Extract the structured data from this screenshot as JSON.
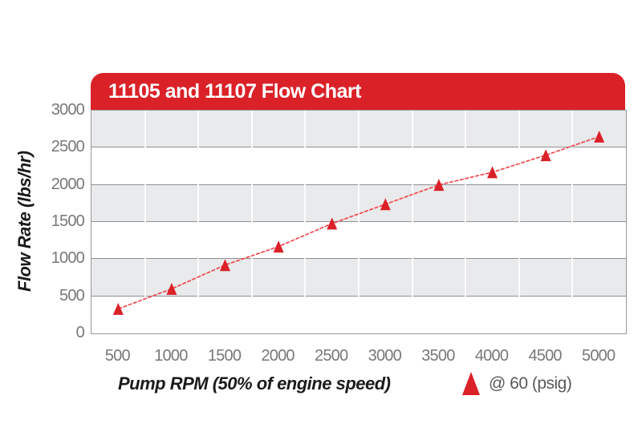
{
  "header": {
    "title": "11105 and 11107 Flow Chart"
  },
  "chart_data": {
    "type": "line",
    "title": "11105 and 11107 Flow Chart",
    "xlabel": "Pump RPM (50% of engine speed)",
    "ylabel": "Flow Rate (lbs/hr)",
    "x": [
      500,
      1000,
      1500,
      2000,
      2500,
      3000,
      3500,
      4000,
      4500,
      5000
    ],
    "series": [
      {
        "name": "@ 60 (psig)",
        "marker": "triangle-up",
        "values": [
          330,
          600,
          920,
          1170,
          1480,
          1740,
          2000,
          2170,
          2400,
          2650
        ]
      }
    ],
    "ylim": [
      0,
      3000
    ],
    "yticks": [
      0,
      500,
      1000,
      1500,
      2000,
      2500,
      3000
    ],
    "xlim_categories": "10 equal columns, points centered in columns",
    "grid": "horizontal gray lines every 500; alternating gray/white row bands; white vertical separators between columns",
    "legend_position": "bottom-right below axis"
  },
  "legend": {
    "label": "@ 60 (psig)",
    "marker_icon": "triangle-up-icon"
  },
  "colors": {
    "header_red": "#da2128",
    "marker_red": "#da2128",
    "line_red": "#ee4a50",
    "band_gray": "#e9eaec",
    "band_white": "#ffffff",
    "hgrid_gray": "#8f9093",
    "vgrid_white": "#ffffff",
    "tick_text": "#77787b",
    "axis_title_text": "#1b1b1d",
    "legend_text": "#58595b",
    "title_text": "#ffffff",
    "page_background": "#ffffff"
  }
}
